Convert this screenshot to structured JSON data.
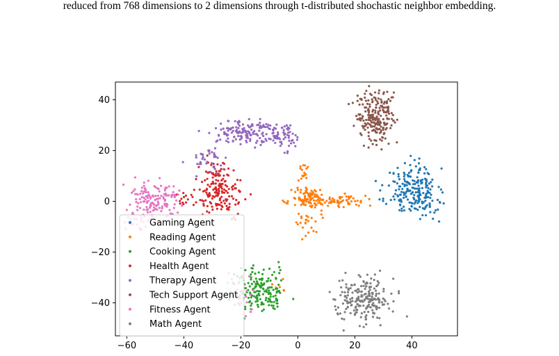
{
  "caption": "reduced from 768 dimensions to 2 dimensions through t-distributed shochastic neighbor embedding.",
  "chart_data": {
    "type": "scatter",
    "title": "",
    "xlabel": "",
    "ylabel": "",
    "xlim": [
      -64,
      56
    ],
    "ylim": [
      -53,
      47
    ],
    "xticks": [
      -60,
      -40,
      -20,
      0,
      20,
      40
    ],
    "xtick_labels": [
      "−60",
      "−40",
      "−20",
      "0",
      "20",
      "40"
    ],
    "yticks": [
      -40,
      -20,
      0,
      20,
      40
    ],
    "ytick_labels": [
      "−40",
      "−20",
      "0",
      "20",
      "40"
    ],
    "grid": false,
    "legend_position": "lower-left",
    "series": [
      {
        "name": "Gaming Agent",
        "color": "#1f77b4",
        "clusters": [
          {
            "center": [
              40,
              4
            ],
            "spread": [
              4.5,
              4.5
            ],
            "n": 170,
            "seed": 11
          },
          {
            "center": [
              43,
              12
            ],
            "spread": [
              3,
              3
            ],
            "n": 25,
            "seed": 12
          },
          {
            "center": [
              45,
              -2
            ],
            "spread": [
              3,
              2.5
            ],
            "n": 25,
            "seed": 13
          }
        ]
      },
      {
        "name": "Reading Agent",
        "color": "#ff7f0e",
        "clusters": [
          {
            "center": [
              4,
              1
            ],
            "spread": [
              3,
              2
            ],
            "n": 90,
            "seed": 21
          },
          {
            "center": [
              12,
              0
            ],
            "spread": [
              4,
              1.2
            ],
            "n": 40,
            "seed": 22
          },
          {
            "center": [
              21,
              0
            ],
            "spread": [
              3,
              1.0
            ],
            "n": 20,
            "seed": 23
          },
          {
            "center": [
              1.5,
              10
            ],
            "spread": [
              1,
              3
            ],
            "n": 18,
            "seed": 24
          },
          {
            "center": [
              4,
              -8
            ],
            "spread": [
              2.5,
              3.5
            ],
            "n": 30,
            "seed": 25
          },
          {
            "center": [
              -6,
              -32
            ],
            "spread": [
              1.5,
              3
            ],
            "n": 6,
            "seed": 26
          }
        ]
      },
      {
        "name": "Cooking Agent",
        "color": "#2ca02c",
        "clusters": [
          {
            "center": [
              -14,
              -35
            ],
            "spread": [
              4.5,
              4.5
            ],
            "n": 150,
            "seed": 31
          },
          {
            "center": [
              -8,
              -37
            ],
            "spread": [
              2,
              3
            ],
            "n": 20,
            "seed": 32
          }
        ]
      },
      {
        "name": "Health Agent",
        "color": "#d62728",
        "clusters": [
          {
            "center": [
              -27,
              3
            ],
            "spread": [
              4,
              4
            ],
            "n": 140,
            "seed": 41
          },
          {
            "center": [
              -30,
              12
            ],
            "spread": [
              3,
              3
            ],
            "n": 30,
            "seed": 42
          },
          {
            "center": [
              -40,
              1
            ],
            "spread": [
              2,
              2.5
            ],
            "n": 15,
            "seed": 43
          }
        ]
      },
      {
        "name": "Therapy Agent",
        "color": "#9467bd",
        "clusters": [
          {
            "center": [
              -17,
              27
            ],
            "spread": [
              7,
              2.5
            ],
            "n": 160,
            "seed": 51
          },
          {
            "center": [
              -5,
              25
            ],
            "spread": [
              2.5,
              3
            ],
            "n": 40,
            "seed": 52
          },
          {
            "center": [
              -31,
              17
            ],
            "spread": [
              3.5,
              3
            ],
            "n": 40,
            "seed": 53
          }
        ]
      },
      {
        "name": "Tech Support Agent",
        "color": "#8c564b",
        "clusters": [
          {
            "center": [
              27,
              33
            ],
            "spread": [
              3.5,
              5
            ],
            "n": 190,
            "seed": 61
          },
          {
            "center": [
              28,
              40
            ],
            "spread": [
              2.5,
              2
            ],
            "n": 30,
            "seed": 62
          }
        ]
      },
      {
        "name": "Fitness Agent",
        "color": "#e377c2",
        "clusters": [
          {
            "center": [
              -50,
              0
            ],
            "spread": [
              5,
              4
            ],
            "n": 150,
            "seed": 71
          },
          {
            "center": [
              -57,
              -8
            ],
            "spread": [
              2.5,
              2.5
            ],
            "n": 20,
            "seed": 72
          },
          {
            "center": [
              -20,
              -35
            ],
            "spread": [
              2.5,
              4
            ],
            "n": 30,
            "seed": 73
          }
        ]
      },
      {
        "name": "Math Agent",
        "color": "#7f7f7f",
        "clusters": [
          {
            "center": [
              23,
              -38
            ],
            "spread": [
              4.8,
              4.5
            ],
            "n": 210,
            "seed": 81
          }
        ]
      }
    ]
  }
}
